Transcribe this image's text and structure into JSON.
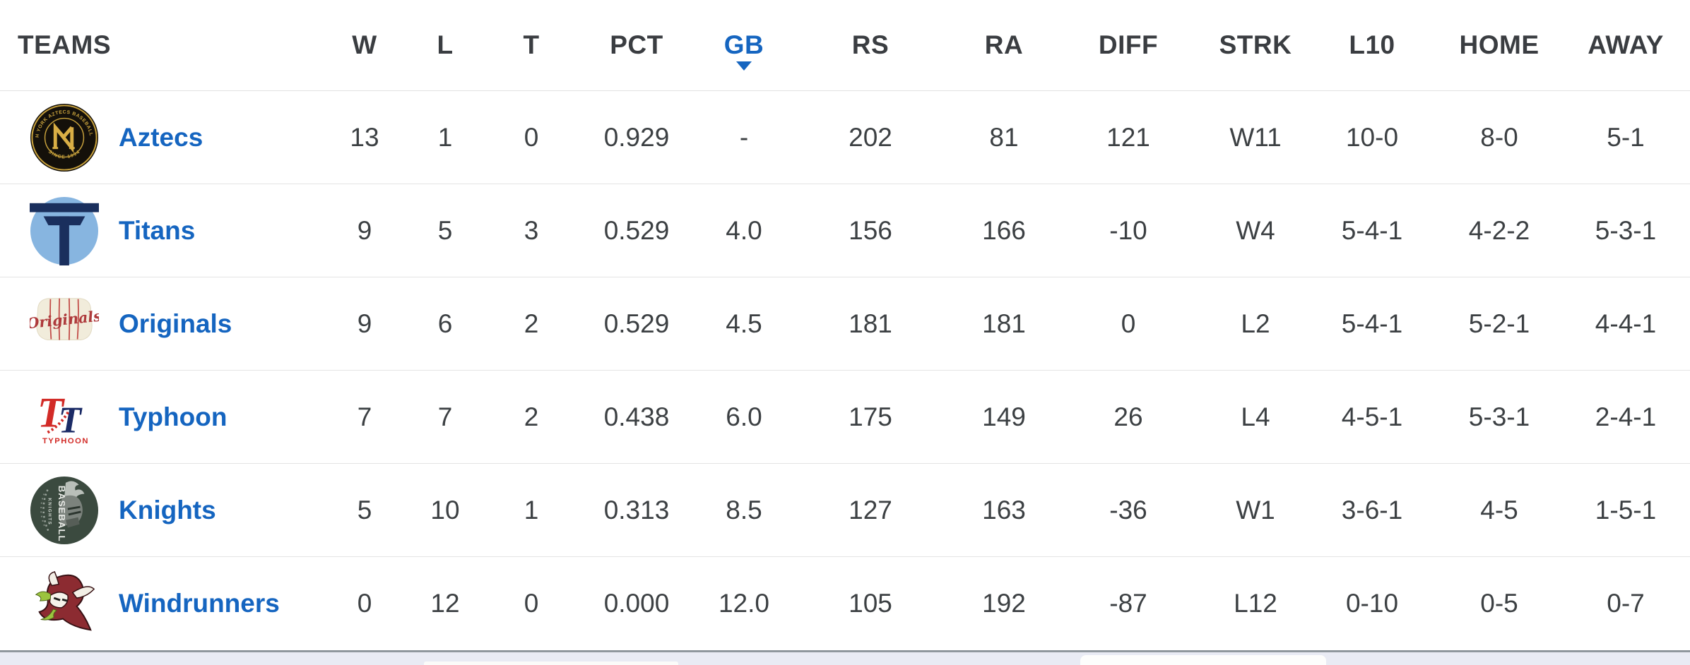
{
  "standings": {
    "sort": {
      "column": "GB",
      "direction": "desc"
    },
    "columns": [
      {
        "key": "team",
        "label": "TEAMS",
        "align": "left"
      },
      {
        "key": "w",
        "label": "W"
      },
      {
        "key": "l",
        "label": "L"
      },
      {
        "key": "t",
        "label": "T"
      },
      {
        "key": "pct",
        "label": "PCT"
      },
      {
        "key": "gb",
        "label": "GB",
        "sorted": "desc"
      },
      {
        "key": "rs",
        "label": "RS"
      },
      {
        "key": "ra",
        "label": "RA"
      },
      {
        "key": "diff",
        "label": "DIFF"
      },
      {
        "key": "strk",
        "label": "STRK"
      },
      {
        "key": "l10",
        "label": "L10"
      },
      {
        "key": "home",
        "label": "HOME"
      },
      {
        "key": "away",
        "label": "AWAY"
      }
    ],
    "rows": [
      {
        "team": "Aztecs",
        "logo": "aztecs",
        "w": "13",
        "l": "1",
        "t": "0",
        "pct": "0.929",
        "gb": "-",
        "rs": "202",
        "ra": "81",
        "diff": "121",
        "strk": "W11",
        "l10": "10-0",
        "home": "8-0",
        "away": "5-1"
      },
      {
        "team": "Titans",
        "logo": "titans",
        "w": "9",
        "l": "5",
        "t": "3",
        "pct": "0.529",
        "gb": "4.0",
        "rs": "156",
        "ra": "166",
        "diff": "-10",
        "strk": "W4",
        "l10": "5-4-1",
        "home": "4-2-2",
        "away": "5-3-1"
      },
      {
        "team": "Originals",
        "logo": "originals",
        "w": "9",
        "l": "6",
        "t": "2",
        "pct": "0.529",
        "gb": "4.5",
        "rs": "181",
        "ra": "181",
        "diff": "0",
        "strk": "L2",
        "l10": "5-4-1",
        "home": "5-2-1",
        "away": "4-4-1"
      },
      {
        "team": "Typhoon",
        "logo": "typhoon",
        "w": "7",
        "l": "7",
        "t": "2",
        "pct": "0.438",
        "gb": "6.0",
        "rs": "175",
        "ra": "149",
        "diff": "26",
        "strk": "L4",
        "l10": "4-5-1",
        "home": "5-3-1",
        "away": "2-4-1"
      },
      {
        "team": "Knights",
        "logo": "knights",
        "w": "5",
        "l": "10",
        "t": "1",
        "pct": "0.313",
        "gb": "8.5",
        "rs": "127",
        "ra": "163",
        "diff": "-36",
        "strk": "W1",
        "l10": "3-6-1",
        "home": "4-5",
        "away": "1-5-1"
      },
      {
        "team": "Windrunners",
        "logo": "windrunners",
        "w": "0",
        "l": "12",
        "t": "0",
        "pct": "0.000",
        "gb": "12.0",
        "rs": "105",
        "ra": "192",
        "diff": "-87",
        "strk": "L12",
        "l10": "0-10",
        "home": "0-5",
        "away": "0-7"
      }
    ]
  },
  "logos": {
    "aztecs": {
      "ring_top": "NORTH YORK AZTECS BASEBALL CLUB",
      "ring_bottom": "SINCE 1994",
      "monogram": "N",
      "colors": {
        "bg": "#14100A",
        "gold": "#C9A23C"
      }
    },
    "titans": {
      "letter": "T",
      "colors": {
        "circle": "#87B5E0",
        "navy": "#1A2F5D"
      }
    },
    "originals": {
      "script": "Originals",
      "colors": {
        "jersey": "#F1ECDB",
        "red": "#AE3A3C"
      }
    },
    "typhoon": {
      "letters": "TT",
      "wordmark": "TYPHOON",
      "colors": {
        "red": "#D22B27",
        "navy": "#1B2B66"
      }
    },
    "knights": {
      "word_vertical": "BASEBALL",
      "word_small": "KNIGHTS",
      "colors": {
        "circle": "#3B4A3F",
        "gray": "#979D98"
      }
    },
    "windrunners": {
      "colors": {
        "hood": "#8C2B31",
        "horns": "#F3EFE6",
        "hair": "#9CC43F"
      }
    }
  },
  "theme": {
    "link_blue": "#1565C0",
    "text_dark": "#3C4043",
    "row_border": "#E4E4E4",
    "sorted_column_color": "#1565C0",
    "bottom_edge_border": "#8F979D",
    "next_section_bg": "#E9EBF4"
  }
}
